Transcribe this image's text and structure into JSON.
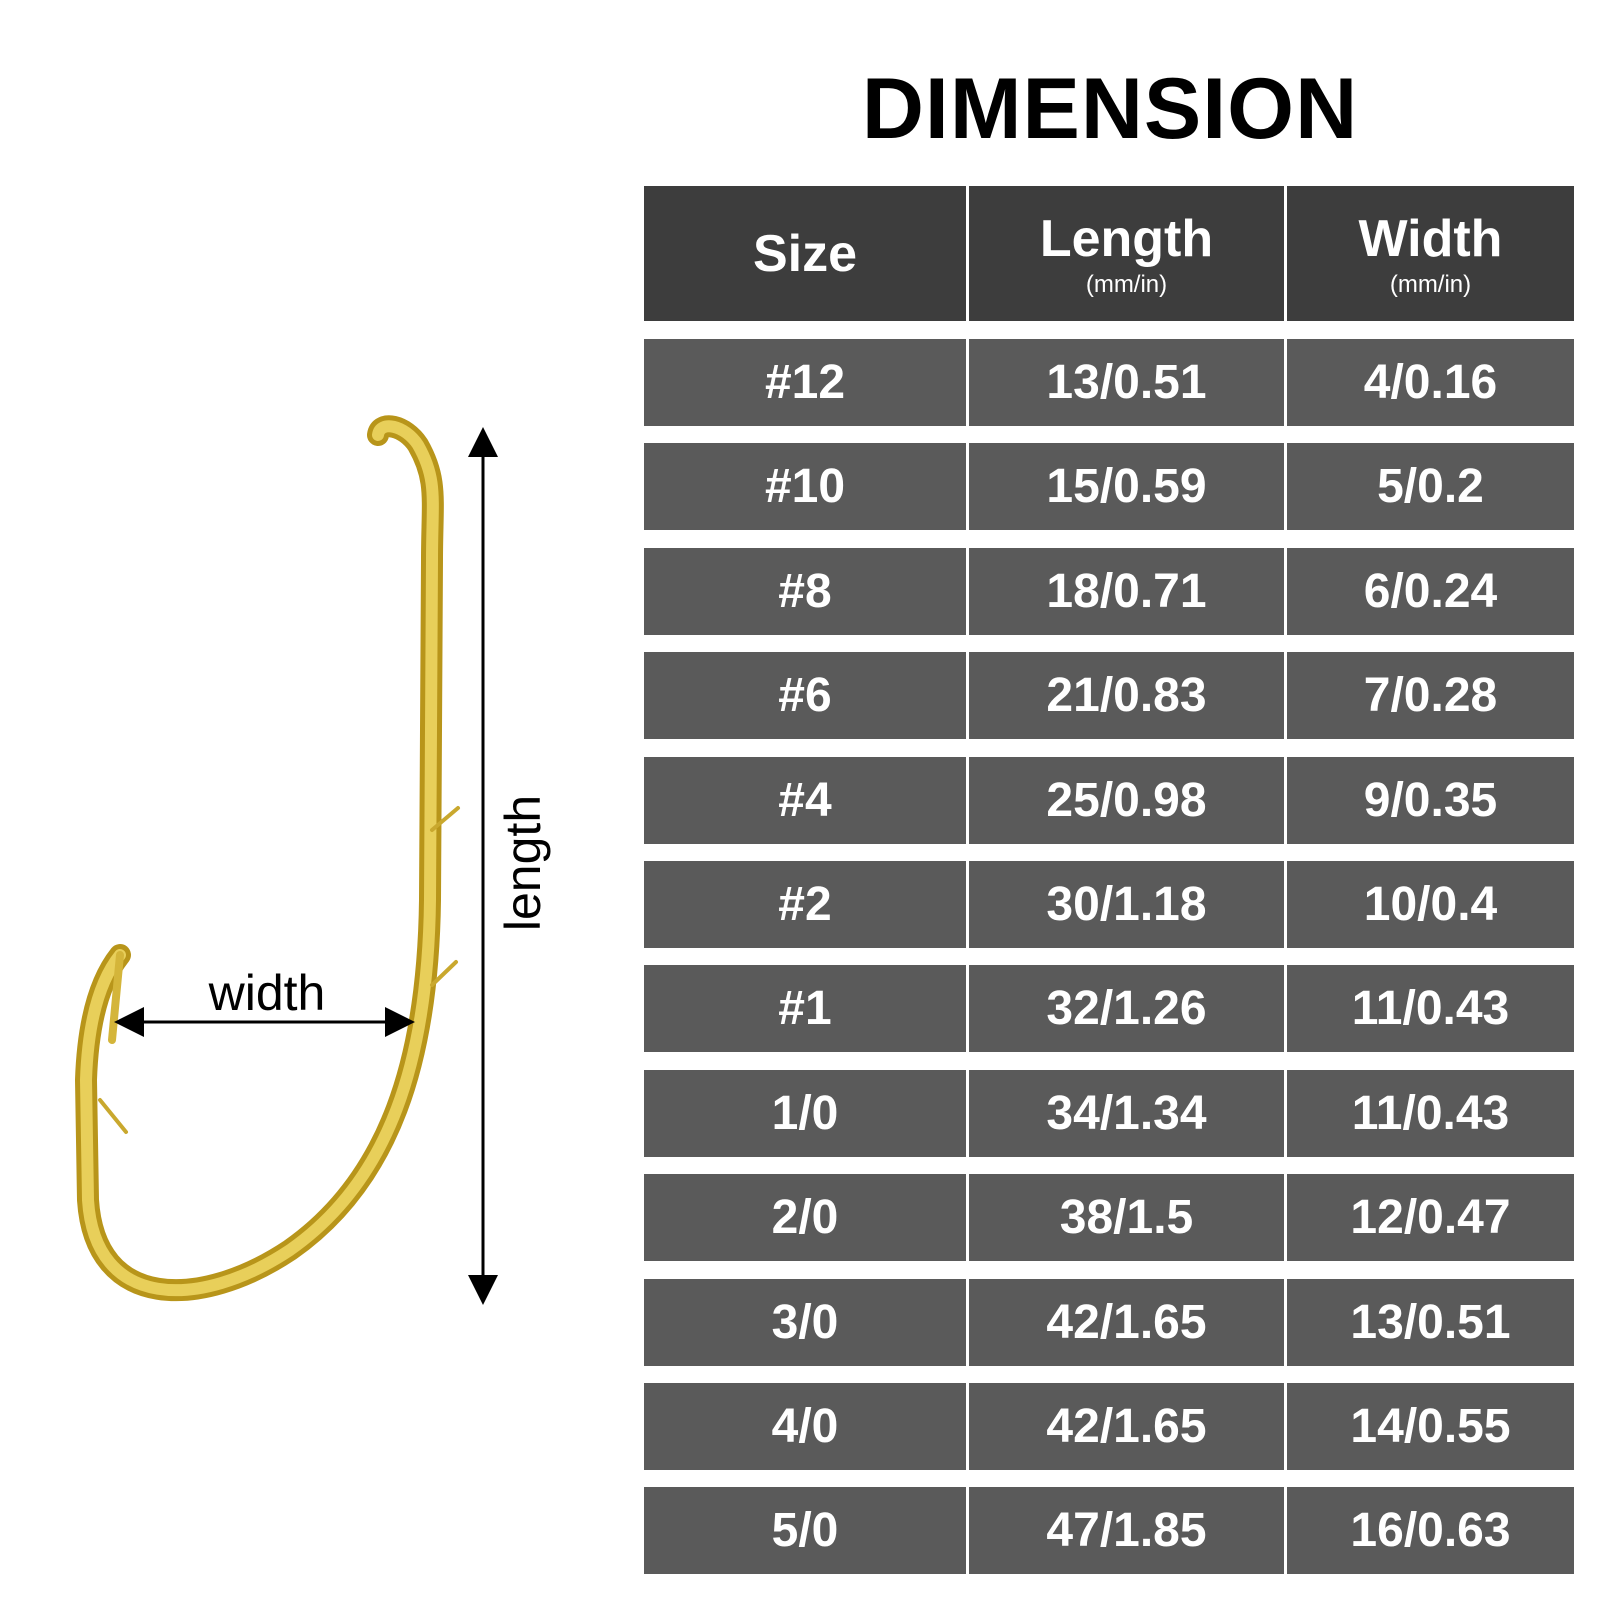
{
  "title": "DIMENSION",
  "diagram": {
    "width_label": "width",
    "length_label": "length"
  },
  "table": {
    "header": [
      {
        "label": "Size"
      },
      {
        "label": "Length",
        "unit": "(mm/in)"
      },
      {
        "label": "Width",
        "unit": "(mm/in)"
      }
    ],
    "rows": [
      [
        "#12",
        "13/0.51",
        "4/0.16"
      ],
      [
        "#10",
        "15/0.59",
        "5/0.2"
      ],
      [
        "#8",
        "18/0.71",
        "6/0.24"
      ],
      [
        "#6",
        "21/0.83",
        "7/0.28"
      ],
      [
        "#4",
        "25/0.98",
        "9/0.35"
      ],
      [
        "#2",
        "30/1.18",
        "10/0.4"
      ],
      [
        "#1",
        "32/1.26",
        "11/0.43"
      ],
      [
        "1/0",
        "34/1.34",
        "11/0.43"
      ],
      [
        "2/0",
        "38/1.5",
        "12/0.47"
      ],
      [
        "3/0",
        "42/1.65",
        "13/0.51"
      ],
      [
        "4/0",
        "42/1.65",
        "14/0.55"
      ],
      [
        "5/0",
        "47/1.85",
        "16/0.63"
      ]
    ]
  }
}
